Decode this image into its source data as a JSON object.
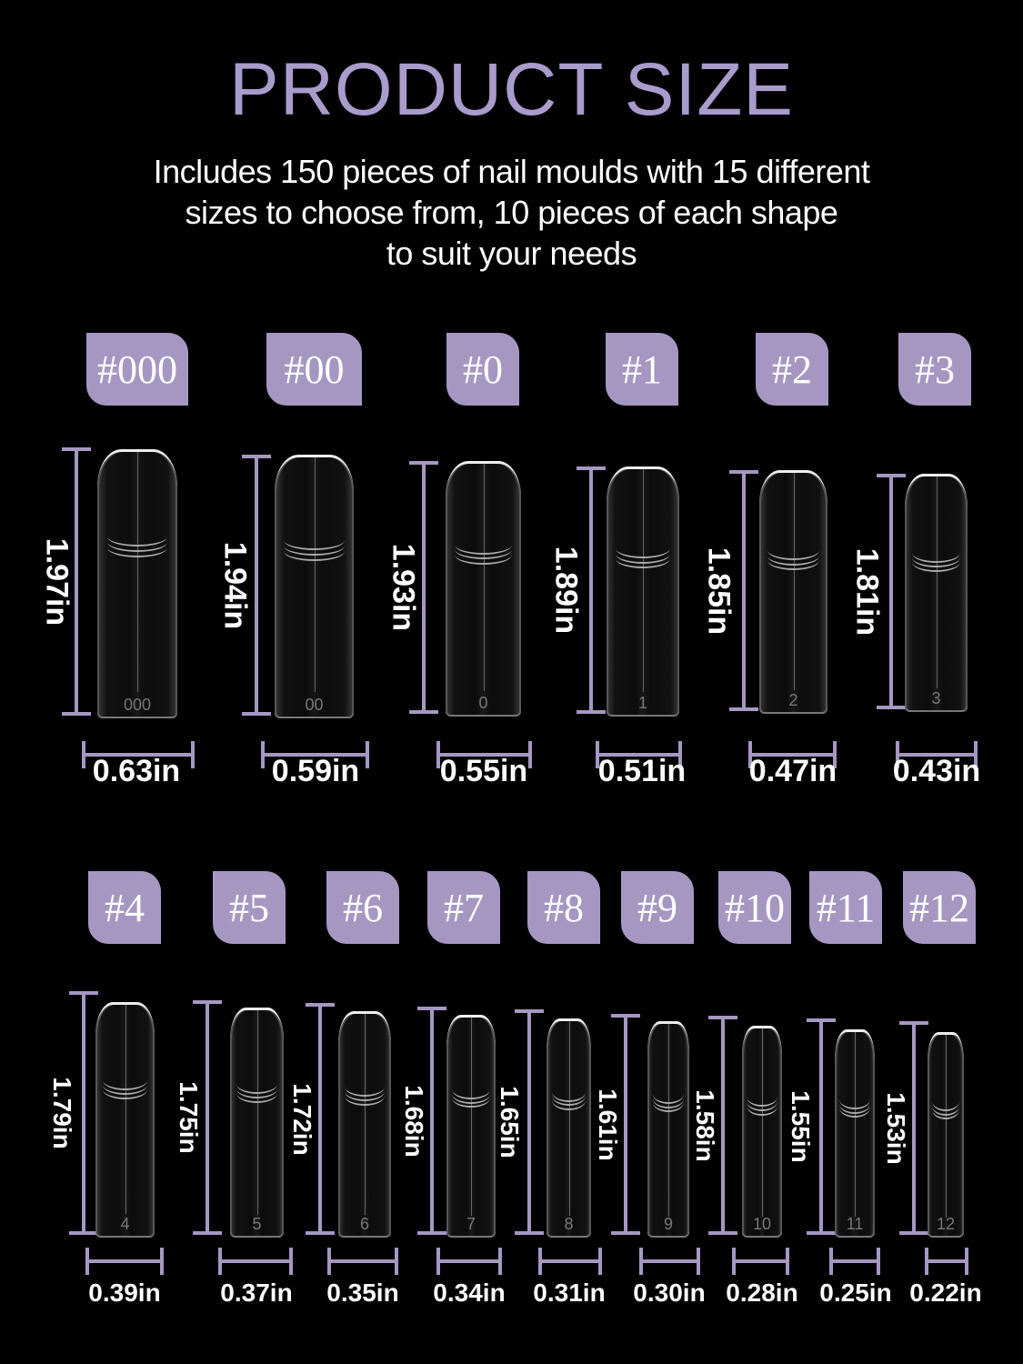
{
  "title": "PRODUCT SIZE",
  "subtitle": [
    "Includes 150 pieces of nail moulds with 15 different",
    "sizes to choose from, 10 pieces of each shape",
    "to suit your needs"
  ],
  "colors": {
    "accent": "#a697c2",
    "title": "#a99bcb",
    "background": "#000000"
  },
  "sizes": [
    {
      "tag": "#000",
      "number": "000",
      "length": "1.97in",
      "width": "0.63in"
    },
    {
      "tag": "#00",
      "number": "00",
      "length": "1.94in",
      "width": "0.59in"
    },
    {
      "tag": "#0",
      "number": "0",
      "length": "1.93in",
      "width": "0.55in"
    },
    {
      "tag": "#1",
      "number": "1",
      "length": "1.89in",
      "width": "0.51in"
    },
    {
      "tag": "#2",
      "number": "2",
      "length": "1.85in",
      "width": "0.47in"
    },
    {
      "tag": "#3",
      "number": "3",
      "length": "1.81in",
      "width": "0.43in"
    },
    {
      "tag": "#4",
      "number": "4",
      "length": "1.79in",
      "width": "0.39in"
    },
    {
      "tag": "#5",
      "number": "5",
      "length": "1.75in",
      "width": "0.37in"
    },
    {
      "tag": "#6",
      "number": "6",
      "length": "1.72in",
      "width": "0.35in"
    },
    {
      "tag": "#7",
      "number": "7",
      "length": "1.68in",
      "width": "0.34in"
    },
    {
      "tag": "#8",
      "number": "8",
      "length": "1.65in",
      "width": "0.31in"
    },
    {
      "tag": "#9",
      "number": "9",
      "length": "1.61in",
      "width": "0.30in"
    },
    {
      "tag": "#10",
      "number": "10",
      "length": "1.58in",
      "width": "0.28in"
    },
    {
      "tag": "#11",
      "number": "11",
      "length": "1.55in",
      "width": "0.25in"
    },
    {
      "tag": "#12",
      "number": "12",
      "length": "1.53in",
      "width": "0.22in"
    }
  ]
}
